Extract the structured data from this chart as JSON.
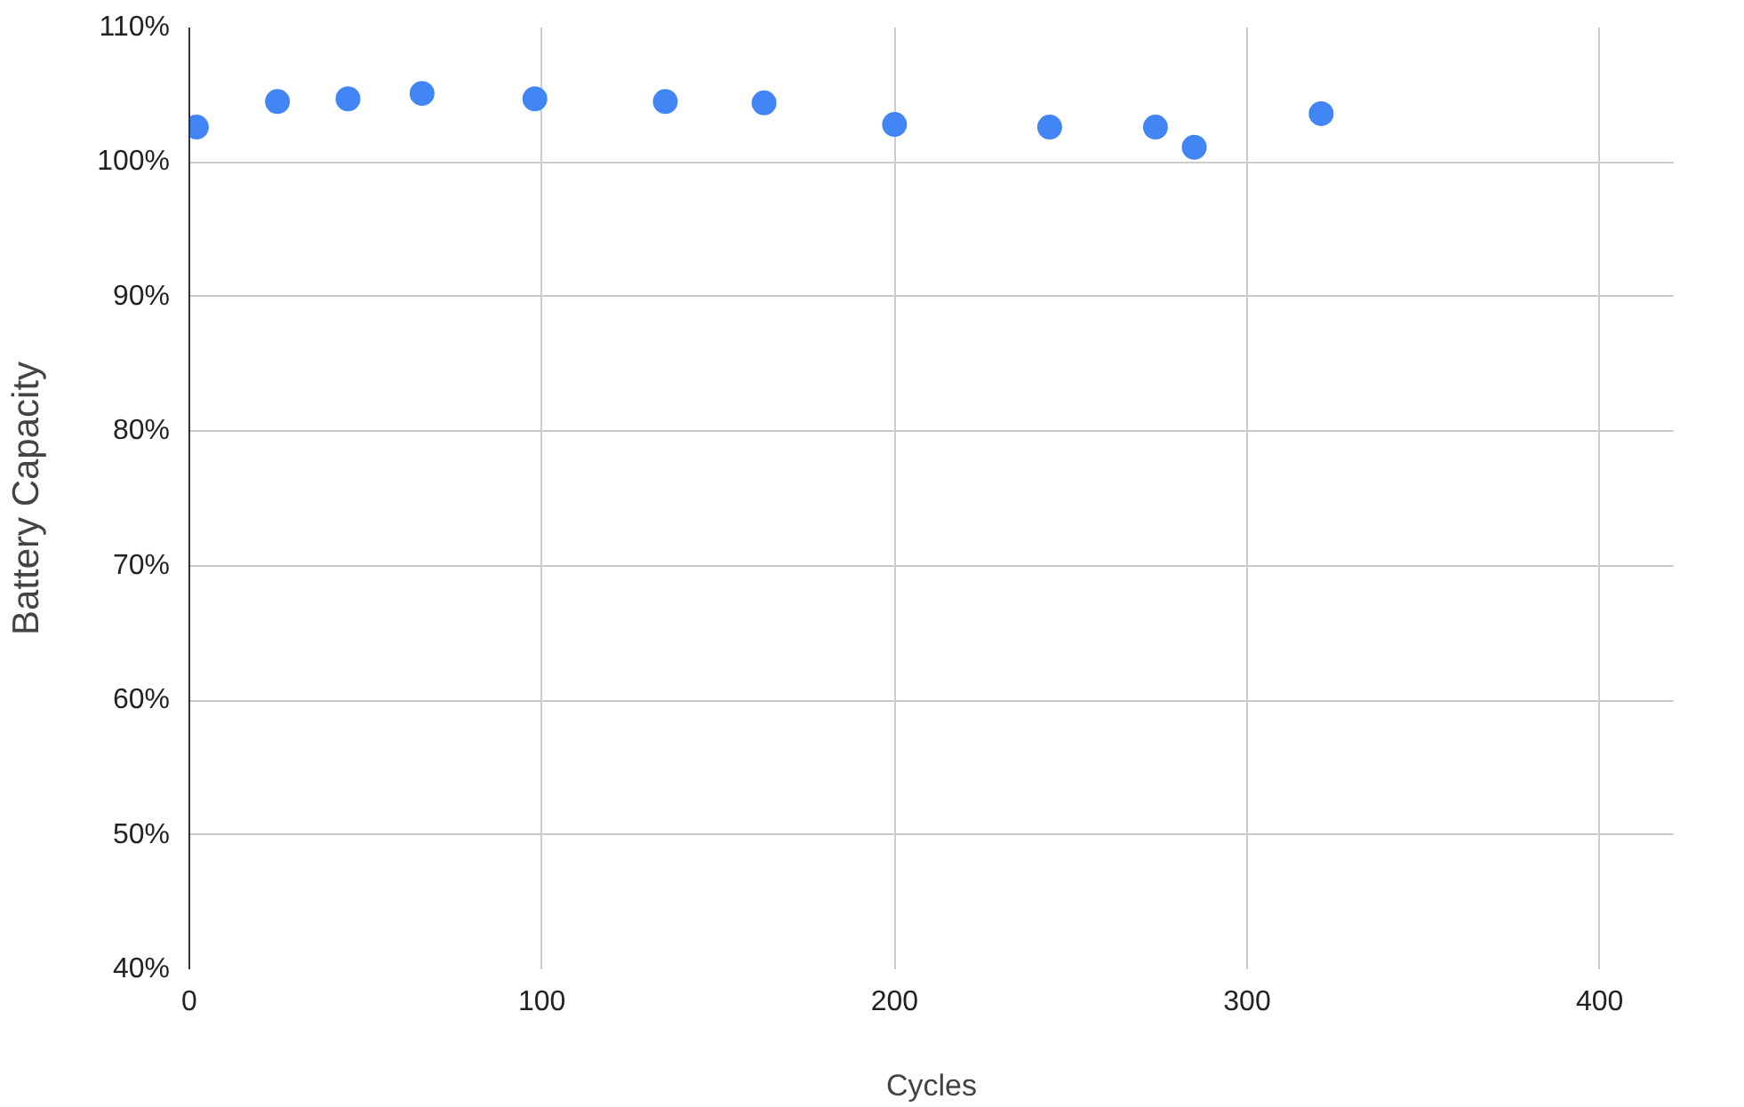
{
  "chart_data": {
    "type": "scatter",
    "xlabel": "Cycles",
    "ylabel": "Battery Capacity",
    "x": [
      2,
      25,
      45,
      66,
      98,
      135,
      163,
      200,
      244,
      274,
      285,
      321
    ],
    "series": [
      {
        "color": "#4285f4",
        "values": [
          102.6,
          104.5,
          104.7,
          105.1,
          104.7,
          104.5,
          104.4,
          102.8,
          102.6,
          102.6,
          101.1,
          103.6
        ]
      }
    ],
    "xlim": [
      0,
      421
    ],
    "ylim": [
      40,
      110
    ],
    "xticks": [
      0,
      100,
      200,
      300,
      400
    ],
    "yticks": [
      {
        "value": 40,
        "label": "40%"
      },
      {
        "value": 50,
        "label": "50%"
      },
      {
        "value": 60,
        "label": "60%"
      },
      {
        "value": 70,
        "label": "70%"
      },
      {
        "value": 80,
        "label": "80%"
      },
      {
        "value": 90,
        "label": "90%"
      },
      {
        "value": 100,
        "label": "100%"
      },
      {
        "value": 110,
        "label": "110%"
      }
    ],
    "grid": true,
    "marker": "circle"
  }
}
